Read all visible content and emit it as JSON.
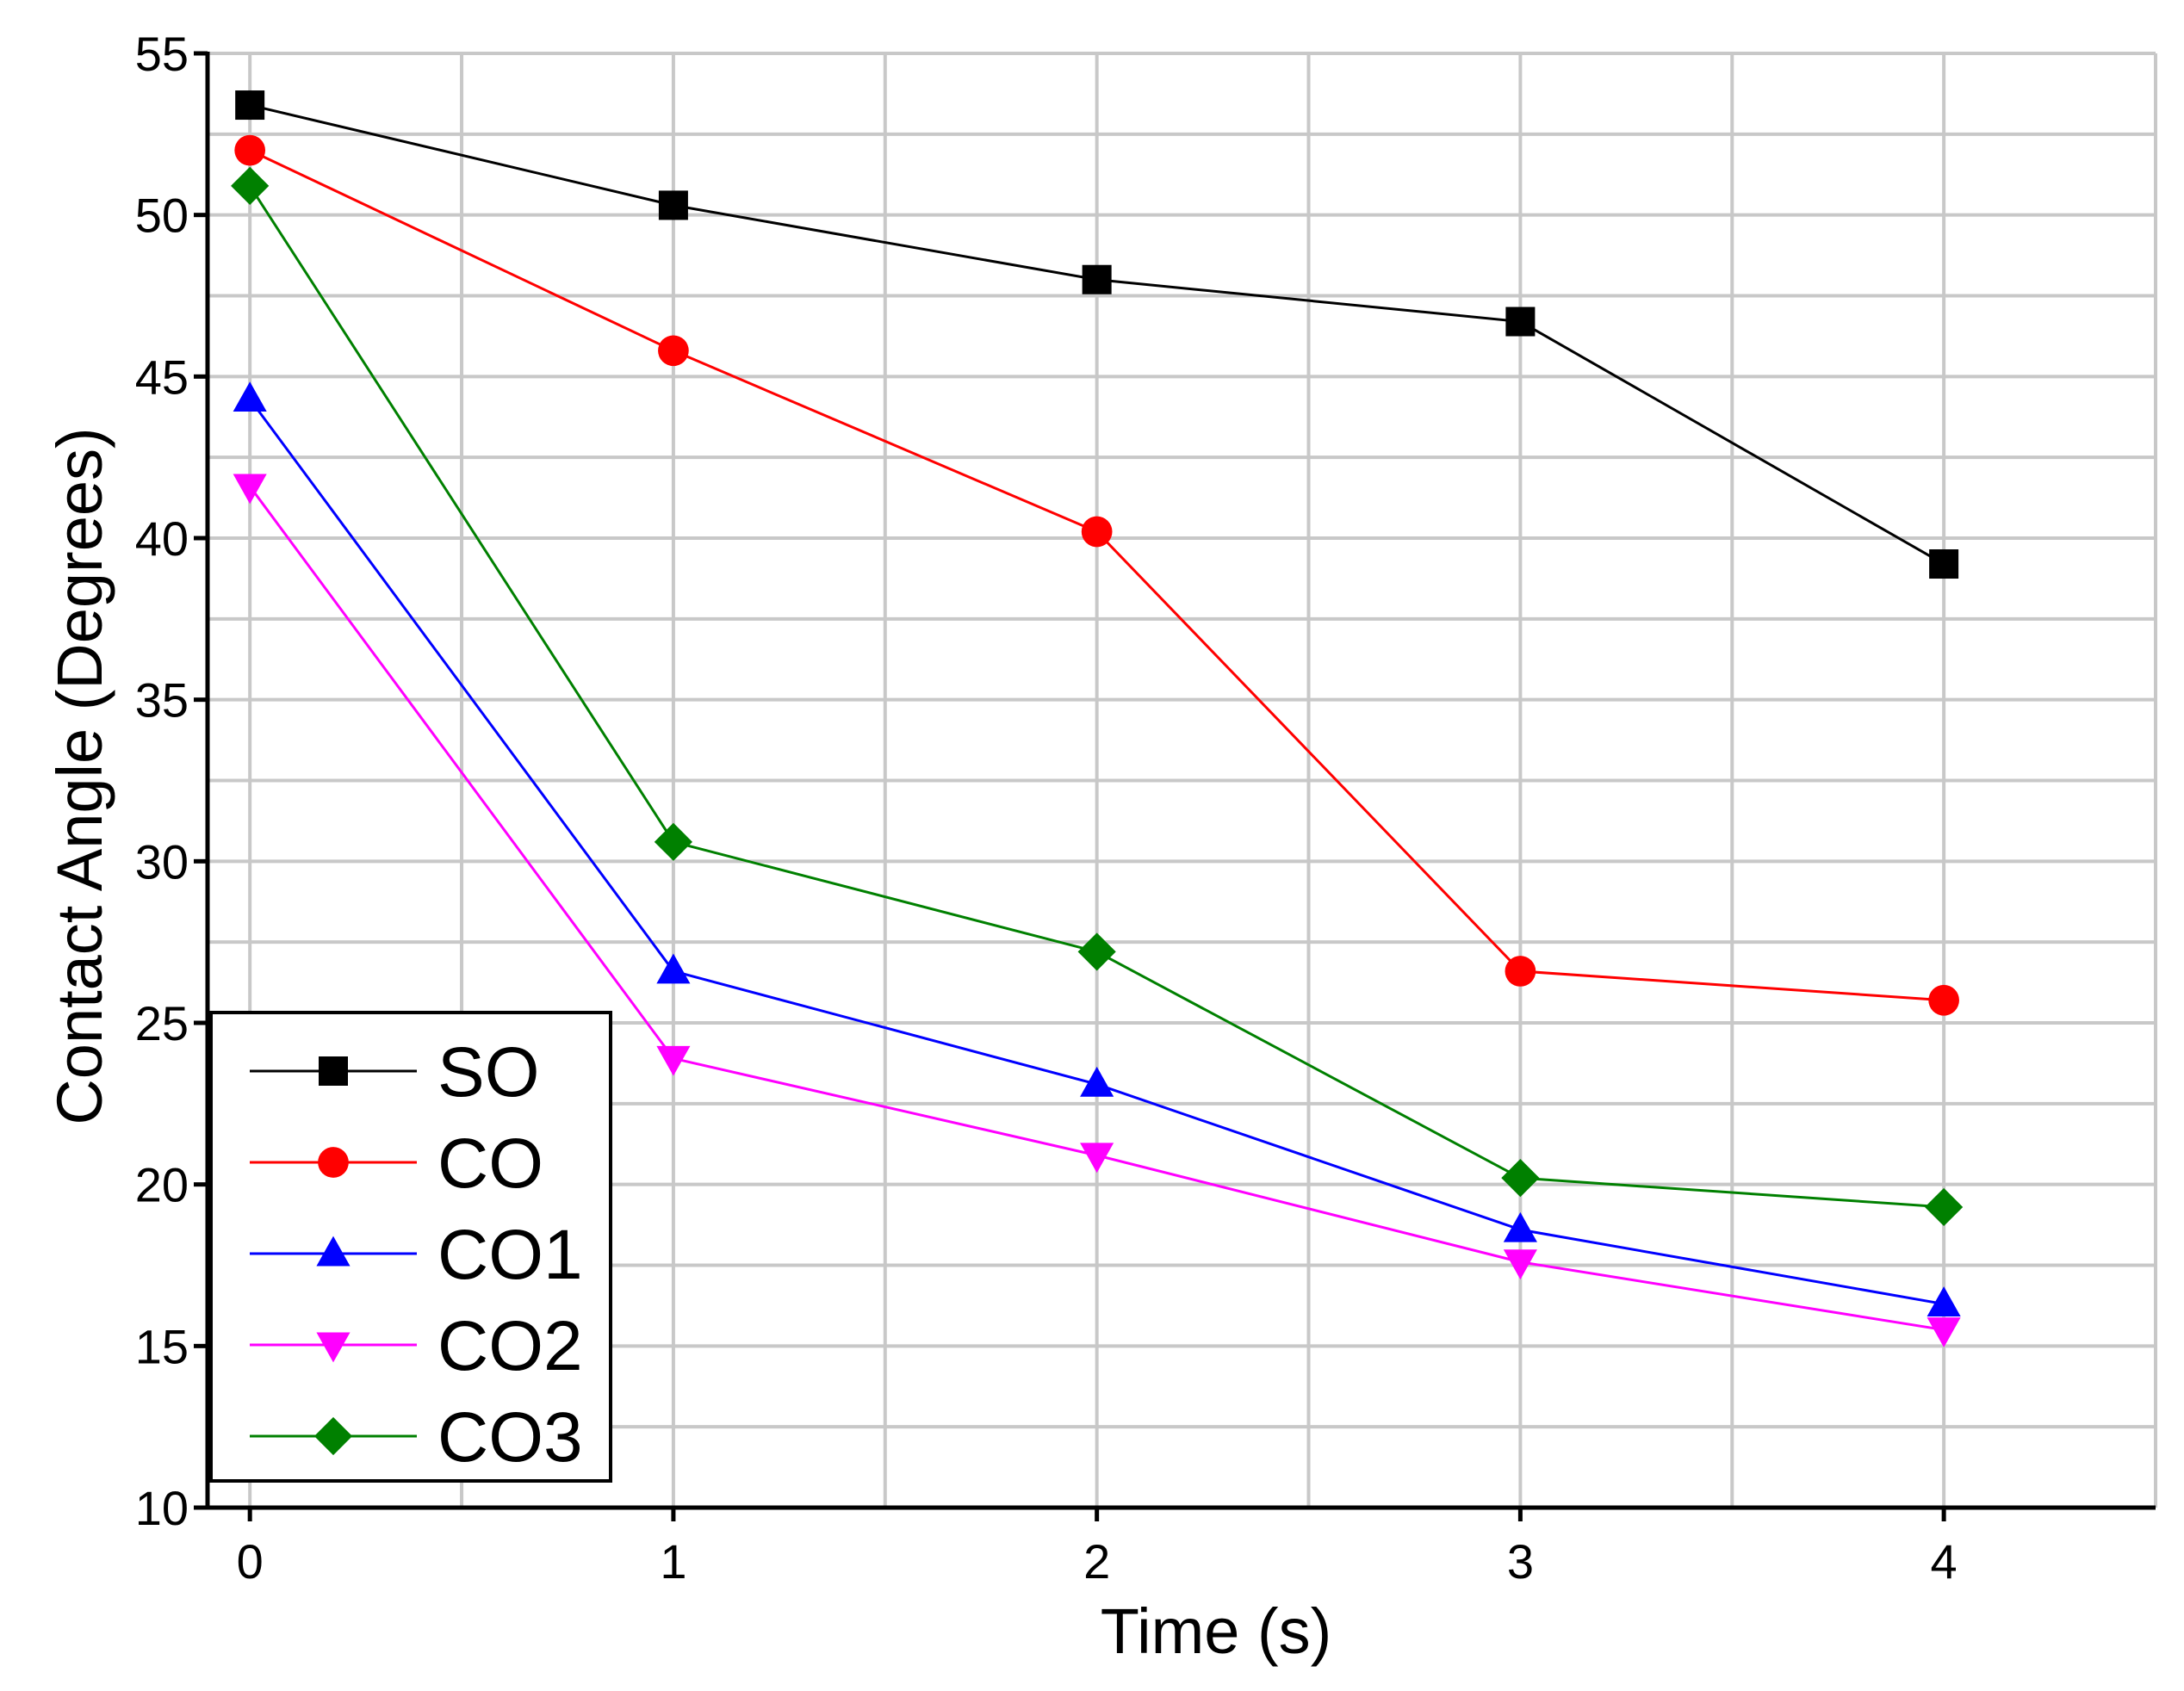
{
  "chart_data": {
    "type": "line",
    "title": "",
    "xlabel": "Time (s)",
    "ylabel": "Contact Angle (Degrees)",
    "xlim": [
      -0.1,
      4.5
    ],
    "ylim": [
      10,
      55
    ],
    "x": [
      0,
      1,
      2,
      3,
      4
    ],
    "x_ticks": [
      0,
      1,
      2,
      3,
      4
    ],
    "x_tick_labels": [
      "0",
      "1",
      "2",
      "3",
      "4"
    ],
    "y_ticks": [
      10,
      15,
      20,
      25,
      30,
      35,
      40,
      45,
      50,
      55
    ],
    "y_tick_labels": [
      "10",
      "15",
      "20",
      "25",
      "30",
      "35",
      "40",
      "45",
      "50",
      "55"
    ],
    "grid": true,
    "legend_position": "bottom-left",
    "series": [
      {
        "name": "SO",
        "color": "#000000",
        "marker": "square",
        "values": [
          53.4,
          50.3,
          48.0,
          46.7,
          39.2
        ]
      },
      {
        "name": "CO",
        "color": "#ff0000",
        "marker": "circle",
        "values": [
          52.0,
          45.8,
          40.2,
          26.6,
          25.7
        ]
      },
      {
        "name": "CO1",
        "color": "#0000ff",
        "marker": "triangle-up",
        "values": [
          44.3,
          26.6,
          23.1,
          18.6,
          16.3
        ]
      },
      {
        "name": "CO2",
        "color": "#ff00ff",
        "marker": "triangle-down",
        "values": [
          41.6,
          23.9,
          20.9,
          17.6,
          15.5
        ]
      },
      {
        "name": "CO3",
        "color": "#008000",
        "marker": "diamond",
        "values": [
          50.9,
          30.6,
          27.2,
          20.2,
          19.3
        ]
      }
    ]
  }
}
